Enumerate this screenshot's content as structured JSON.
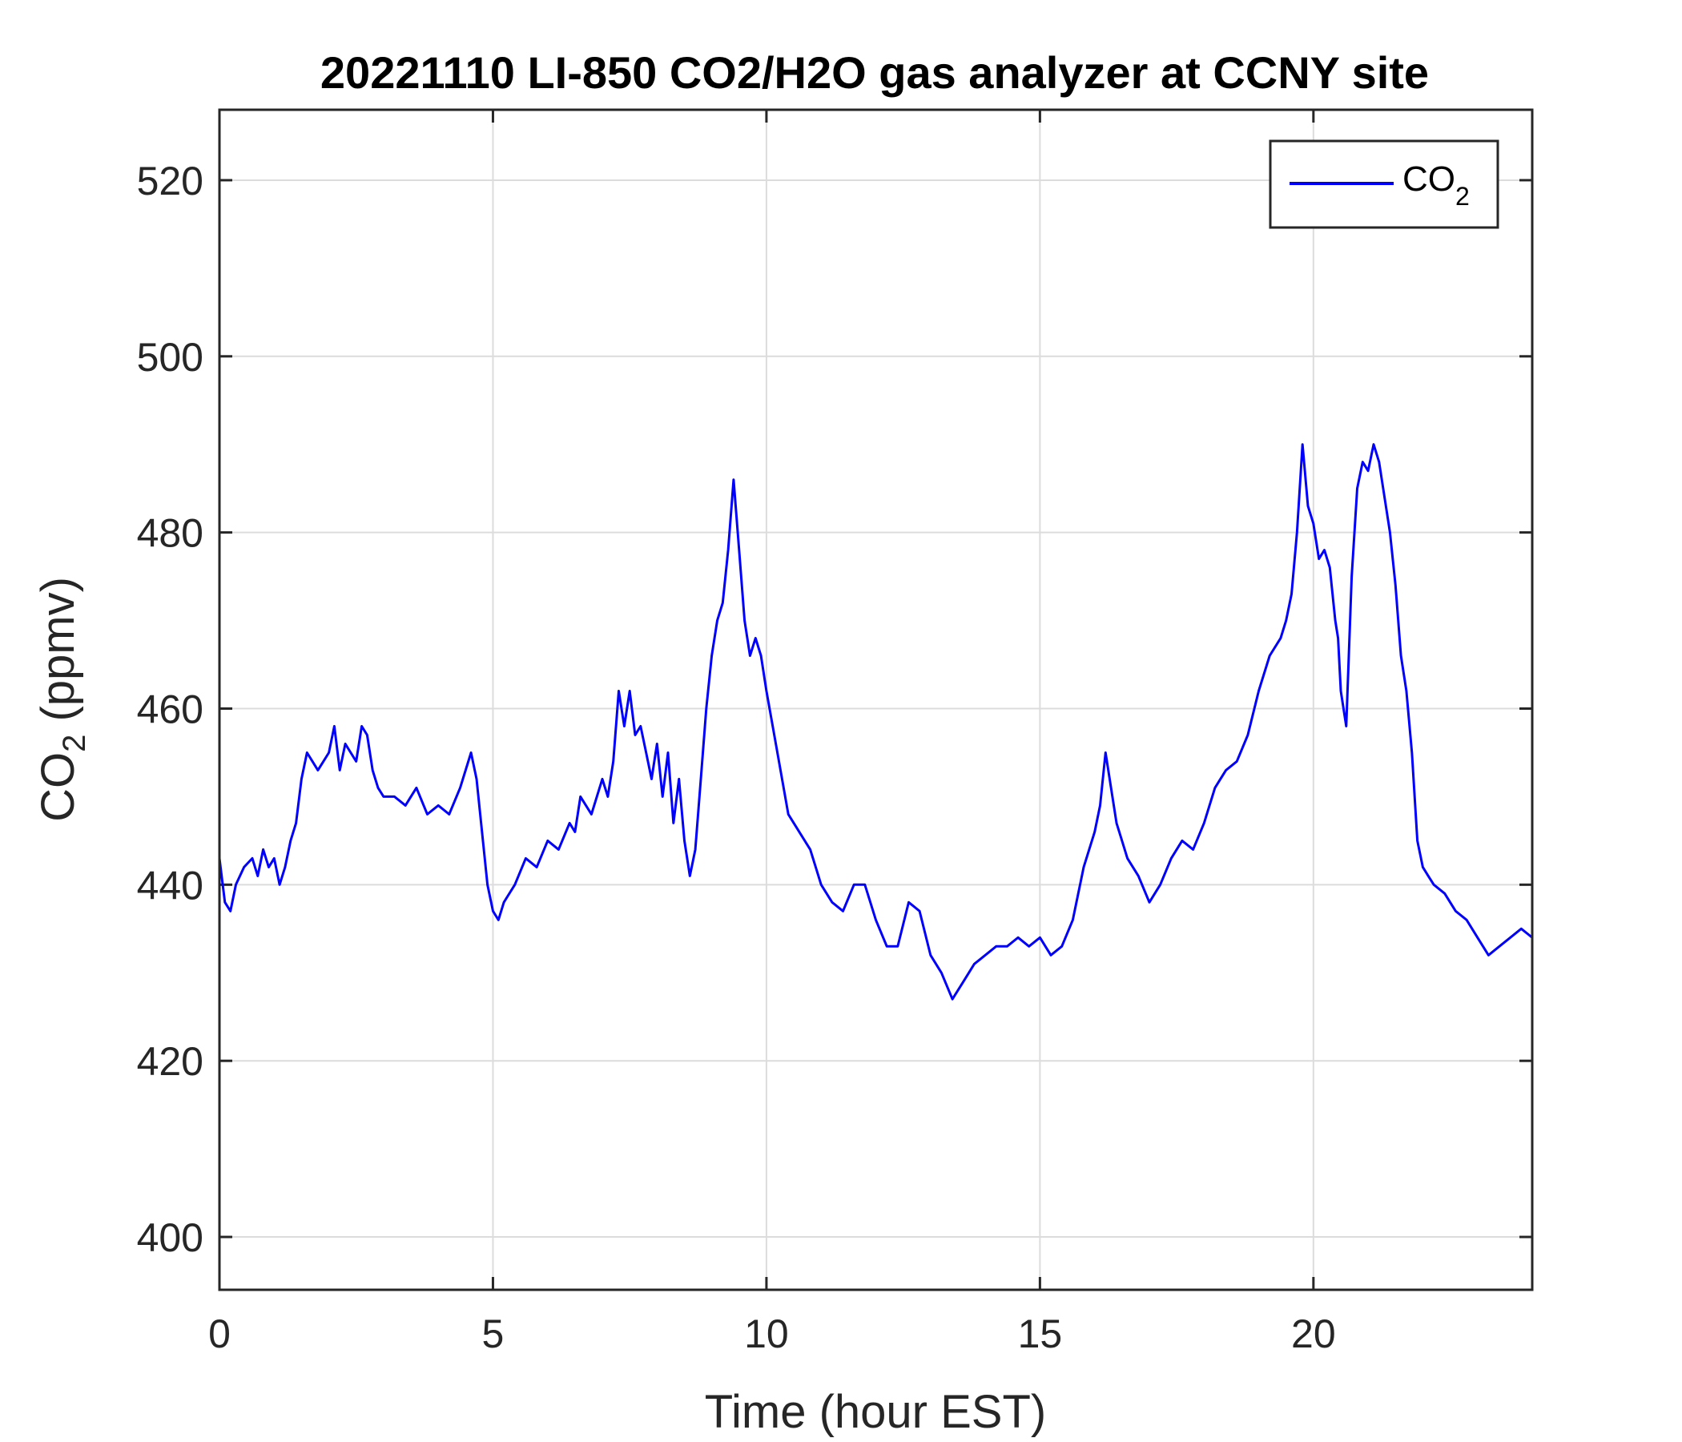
{
  "chart_data": {
    "type": "line",
    "title": "20221110 LI-850 CO2/H2O gas analyzer at CCNY site",
    "xlabel": "Time (hour EST)",
    "ylabel": {
      "base": "CO",
      "sub": "2",
      "tail": " (ppmv)"
    },
    "xlim": [
      0,
      24
    ],
    "ylim": [
      394,
      528
    ],
    "xticks": [
      0,
      5,
      10,
      15,
      20
    ],
    "yticks": [
      400,
      420,
      440,
      460,
      480,
      500,
      520
    ],
    "grid": true,
    "legend": {
      "position": "top-right"
    },
    "series": [
      {
        "name": {
          "base": "CO",
          "sub": "2"
        },
        "color": "#0000ff",
        "x": [
          0,
          0.1,
          0.2,
          0.3,
          0.45,
          0.6,
          0.7,
          0.8,
          0.9,
          1.0,
          1.1,
          1.2,
          1.3,
          1.4,
          1.5,
          1.6,
          1.7,
          1.8,
          1.9,
          2.0,
          2.1,
          2.2,
          2.3,
          2.4,
          2.5,
          2.6,
          2.7,
          2.8,
          2.9,
          3.0,
          3.2,
          3.4,
          3.6,
          3.8,
          4.0,
          4.2,
          4.4,
          4.6,
          4.7,
          4.8,
          4.9,
          5.0,
          5.1,
          5.2,
          5.4,
          5.6,
          5.8,
          6.0,
          6.2,
          6.4,
          6.5,
          6.6,
          6.8,
          7.0,
          7.1,
          7.2,
          7.3,
          7.4,
          7.5,
          7.6,
          7.7,
          7.8,
          7.9,
          8.0,
          8.1,
          8.2,
          8.3,
          8.4,
          8.5,
          8.6,
          8.7,
          8.8,
          8.9,
          9.0,
          9.1,
          9.2,
          9.3,
          9.4,
          9.5,
          9.6,
          9.7,
          9.8,
          9.9,
          10.0,
          10.2,
          10.4,
          10.6,
          10.8,
          11.0,
          11.2,
          11.4,
          11.6,
          11.8,
          12.0,
          12.2,
          12.4,
          12.6,
          12.8,
          13.0,
          13.2,
          13.4,
          13.6,
          13.8,
          14.0,
          14.2,
          14.4,
          14.6,
          14.8,
          15.0,
          15.2,
          15.4,
          15.6,
          15.8,
          16.0,
          16.1,
          16.2,
          16.4,
          16.6,
          16.8,
          17.0,
          17.2,
          17.4,
          17.6,
          17.8,
          18.0,
          18.2,
          18.4,
          18.6,
          18.8,
          19.0,
          19.2,
          19.4,
          19.5,
          19.6,
          19.7,
          19.8,
          19.9,
          20.0,
          20.1,
          20.2,
          20.3,
          20.4,
          20.45,
          20.5,
          20.6,
          20.7,
          20.8,
          20.9,
          21.0,
          21.1,
          21.2,
          21.3,
          21.4,
          21.5,
          21.6,
          21.7,
          21.8,
          21.9,
          22.0,
          22.1,
          22.2,
          22.4,
          22.6,
          22.8,
          23.0,
          23.2,
          23.4,
          23.6,
          23.8,
          24.0
        ],
        "y": [
          443,
          438,
          437,
          440,
          442,
          443,
          441,
          444,
          442,
          443,
          440,
          442,
          445,
          447,
          452,
          455,
          454,
          453,
          454,
          455,
          458,
          453,
          456,
          455,
          454,
          458,
          457,
          453,
          451,
          450,
          450,
          449,
          451,
          448,
          449,
          448,
          451,
          455,
          452,
          446,
          440,
          437,
          436,
          438,
          440,
          443,
          442,
          445,
          444,
          447,
          446,
          450,
          448,
          452,
          450,
          454,
          462,
          458,
          462,
          457,
          458,
          455,
          452,
          456,
          450,
          455,
          447,
          452,
          445,
          441,
          444,
          452,
          460,
          466,
          470,
          472,
          478,
          486,
          478,
          470,
          466,
          468,
          466,
          462,
          455,
          448,
          446,
          444,
          440,
          438,
          437,
          440,
          440,
          436,
          433,
          433,
          438,
          437,
          432,
          430,
          427,
          429,
          431,
          432,
          433,
          433,
          434,
          433,
          434,
          432,
          433,
          436,
          442,
          446,
          449,
          455,
          447,
          443,
          441,
          438,
          440,
          443,
          445,
          444,
          447,
          451,
          453,
          454,
          457,
          462,
          466,
          468,
          470,
          473,
          480,
          490,
          483,
          481,
          477,
          478,
          476,
          470,
          468,
          462,
          458,
          475,
          485,
          488,
          487,
          490,
          488,
          484,
          480,
          474,
          466,
          462,
          455,
          445,
          442,
          441,
          440,
          439,
          437,
          436,
          434,
          432,
          433,
          434,
          435,
          434
        ]
      }
    ]
  }
}
